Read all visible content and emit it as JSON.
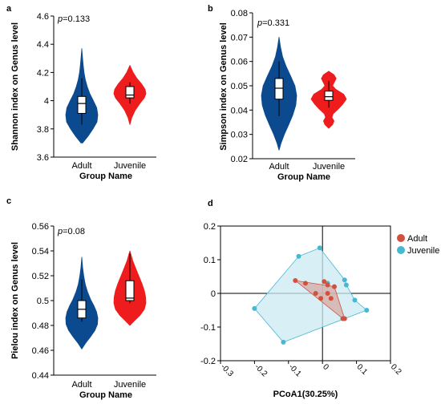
{
  "panels": [
    {
      "letter": "a",
      "pvalue_label": "p",
      "pvalue": "=0.133",
      "xlabel": "Group Name",
      "ylabel": "Shannon index on Genus level",
      "yticks": [
        "3.6",
        "3.8",
        "4",
        "4.2",
        "4.4",
        "4.6"
      ],
      "xticks": [
        "Adult",
        "Juvenile"
      ]
    },
    {
      "letter": "b",
      "pvalue_label": "p",
      "pvalue": "=0.331",
      "xlabel": "Group Name",
      "ylabel": "Simpson index on Genus level",
      "yticks": [
        "0.02",
        "0.03",
        "0.04",
        "0.05",
        "0.06",
        "0.07",
        "0.08"
      ],
      "xticks": [
        "Adult",
        "Juvenile"
      ]
    },
    {
      "letter": "c",
      "pvalue_label": "p",
      "pvalue": "=0.08",
      "xlabel": "Group Name",
      "ylabel": "Pielou index on Genus level",
      "yticks": [
        "0.44",
        "0.46",
        "0.48",
        "0.5",
        "0.52",
        "0.54",
        "0.56"
      ],
      "xticks": [
        "Adult",
        "Juvenile"
      ]
    },
    {
      "letter": "d",
      "xlabel": "PCoA1(30.25%)",
      "yticks": [
        "0.2",
        "0.1",
        "0",
        "-0.1",
        "-0.2"
      ],
      "xticks": [
        "-0.3",
        "-0.2",
        "-0.1",
        "0",
        "0.1",
        "0.2"
      ],
      "legend": [
        "Adult",
        "Juvenile"
      ]
    }
  ],
  "colors": {
    "adult_violin": "#0c4a8f",
    "juvenile_violin": "#ee1c1c",
    "adult_points": "#d2513d",
    "juvenile_points": "#45b8d2",
    "juvenile_hull": "#cbe9f1",
    "adult_hull": "#d6aaa4"
  },
  "chart_data": [
    {
      "type": "violin",
      "categories": [
        "Adult",
        "Juvenile"
      ],
      "ylabel": "Shannon index on Genus level",
      "xlabel": "Group Name",
      "ylim": [
        3.6,
        4.6
      ],
      "pvalue": 0.133,
      "series": [
        {
          "name": "Adult",
          "min": 3.83,
          "q1": 3.91,
          "median": 3.98,
          "q3": 4.03,
          "max": 4.16,
          "range": [
            3.7,
            4.37
          ],
          "density": [
            [
              3.7,
              0.05
            ],
            [
              3.75,
              0.4
            ],
            [
              3.8,
              0.7
            ],
            [
              3.85,
              0.95
            ],
            [
              3.9,
              1.0
            ],
            [
              3.95,
              0.93
            ],
            [
              4.0,
              0.72
            ],
            [
              4.05,
              0.5
            ],
            [
              4.1,
              0.34
            ],
            [
              4.15,
              0.22
            ],
            [
              4.2,
              0.14
            ],
            [
              4.25,
              0.09
            ],
            [
              4.3,
              0.05
            ],
            [
              4.37,
              0.0
            ]
          ]
        },
        {
          "name": "Juvenile",
          "min": 3.98,
          "q1": 4.02,
          "median": 4.04,
          "q3": 4.1,
          "max": 4.13,
          "range": [
            3.83,
            4.25
          ],
          "density": [
            [
              3.83,
              0.0
            ],
            [
              3.88,
              0.12
            ],
            [
              3.93,
              0.32
            ],
            [
              3.98,
              0.62
            ],
            [
              4.02,
              0.9
            ],
            [
              4.05,
              1.0
            ],
            [
              4.08,
              0.95
            ],
            [
              4.12,
              0.72
            ],
            [
              4.16,
              0.42
            ],
            [
              4.2,
              0.2
            ],
            [
              4.25,
              0.0
            ]
          ]
        }
      ]
    },
    {
      "type": "violin",
      "categories": [
        "Adult",
        "Juvenile"
      ],
      "ylabel": "Simpson index on Genus level",
      "xlabel": "Group Name",
      "ylim": [
        0.02,
        0.08
      ],
      "pvalue": 0.331,
      "series": [
        {
          "name": "Adult",
          "min": 0.0375,
          "q1": 0.0445,
          "median": 0.049,
          "q3": 0.053,
          "max": 0.06,
          "range": [
            0.0235,
            0.07
          ],
          "density": [
            [
              0.0235,
              0.0
            ],
            [
              0.0265,
              0.12
            ],
            [
              0.03,
              0.3
            ],
            [
              0.034,
              0.55
            ],
            [
              0.038,
              0.78
            ],
            [
              0.042,
              0.95
            ],
            [
              0.046,
              1.0
            ],
            [
              0.05,
              0.9
            ],
            [
              0.054,
              0.66
            ],
            [
              0.058,
              0.4
            ],
            [
              0.062,
              0.2
            ],
            [
              0.066,
              0.08
            ],
            [
              0.07,
              0.0
            ]
          ]
        },
        {
          "name": "Juvenile",
          "min": 0.041,
          "q1": 0.044,
          "median": 0.0455,
          "q3": 0.0478,
          "max": 0.052,
          "range": [
            0.0325,
            0.056
          ],
          "density": [
            [
              0.0325,
              0.0
            ],
            [
              0.034,
              0.22
            ],
            [
              0.0355,
              0.3
            ],
            [
              0.037,
              0.18
            ],
            [
              0.0385,
              0.25
            ],
            [
              0.0405,
              0.55
            ],
            [
              0.0425,
              0.8
            ],
            [
              0.0445,
              1.0
            ],
            [
              0.0465,
              0.85
            ],
            [
              0.0485,
              0.4
            ],
            [
              0.05,
              0.22
            ],
            [
              0.0515,
              0.32
            ],
            [
              0.053,
              0.42
            ],
            [
              0.0545,
              0.3
            ],
            [
              0.056,
              0.0
            ]
          ]
        }
      ]
    },
    {
      "type": "violin",
      "categories": [
        "Adult",
        "Juvenile"
      ],
      "ylabel": "Pielou index on Genus level",
      "xlabel": "Group Name",
      "ylim": [
        0.44,
        0.56
      ],
      "pvalue": 0.08,
      "series": [
        {
          "name": "Adult",
          "min": 0.483,
          "q1": 0.486,
          "median": 0.493,
          "q3": 0.5,
          "max": 0.517,
          "range": [
            0.461,
            0.535
          ],
          "density": [
            [
              0.461,
              0.0
            ],
            [
              0.466,
              0.25
            ],
            [
              0.471,
              0.55
            ],
            [
              0.476,
              0.82
            ],
            [
              0.481,
              0.98
            ],
            [
              0.486,
              1.0
            ],
            [
              0.491,
              0.92
            ],
            [
              0.496,
              0.75
            ],
            [
              0.501,
              0.55
            ],
            [
              0.507,
              0.36
            ],
            [
              0.513,
              0.22
            ],
            [
              0.52,
              0.12
            ],
            [
              0.527,
              0.05
            ],
            [
              0.535,
              0.0
            ]
          ]
        },
        {
          "name": "Juvenile",
          "min": 0.498,
          "q1": 0.5,
          "median": 0.502,
          "q3": 0.516,
          "max": 0.538,
          "range": [
            0.48,
            0.54
          ],
          "density": [
            [
              0.48,
              0.0
            ],
            [
              0.484,
              0.3
            ],
            [
              0.488,
              0.62
            ],
            [
              0.493,
              0.9
            ],
            [
              0.498,
              1.0
            ],
            [
              0.503,
              0.98
            ],
            [
              0.508,
              0.9
            ],
            [
              0.514,
              0.74
            ],
            [
              0.52,
              0.55
            ],
            [
              0.526,
              0.36
            ],
            [
              0.532,
              0.18
            ],
            [
              0.54,
              0.0
            ]
          ]
        }
      ]
    },
    {
      "type": "scatter",
      "xlabel": "PCoA1(30.25%)",
      "ylabel": "",
      "xlim": [
        -0.3,
        0.2
      ],
      "ylim": [
        -0.2,
        0.2
      ],
      "legend_position": "top-right",
      "grid": false,
      "series": [
        {
          "name": "Adult",
          "points": [
            [
              -0.08,
              0.038
            ],
            [
              -0.05,
              0.03
            ],
            [
              -0.02,
              0.0
            ],
            [
              -0.005,
              -0.015
            ],
            [
              0.005,
              0.035
            ],
            [
              0.015,
              0.025
            ],
            [
              0.025,
              -0.015
            ],
            [
              0.015,
              0.0
            ],
            [
              0.035,
              0.02
            ],
            [
              0.065,
              -0.075
            ],
            [
              0.06,
              -0.075
            ]
          ],
          "hull": [
            [
              -0.08,
              0.038
            ],
            [
              0.035,
              0.02
            ],
            [
              0.065,
              -0.075
            ],
            [
              0.06,
              -0.075
            ]
          ]
        },
        {
          "name": "Juvenile",
          "points": [
            [
              -0.2,
              -0.045
            ],
            [
              -0.115,
              -0.145
            ],
            [
              -0.07,
              0.11
            ],
            [
              -0.008,
              0.135
            ],
            [
              0.015,
              0.03
            ],
            [
              0.065,
              0.04
            ],
            [
              0.07,
              0.025
            ],
            [
              0.095,
              -0.02
            ],
            [
              0.13,
              -0.05
            ],
            [
              0.06,
              -0.075
            ]
          ],
          "hull": [
            [
              -0.2,
              -0.045
            ],
            [
              -0.07,
              0.11
            ],
            [
              -0.008,
              0.135
            ],
            [
              0.065,
              0.04
            ],
            [
              0.07,
              0.025
            ],
            [
              0.095,
              -0.02
            ],
            [
              0.13,
              -0.05
            ],
            [
              -0.115,
              -0.145
            ]
          ]
        }
      ]
    }
  ]
}
